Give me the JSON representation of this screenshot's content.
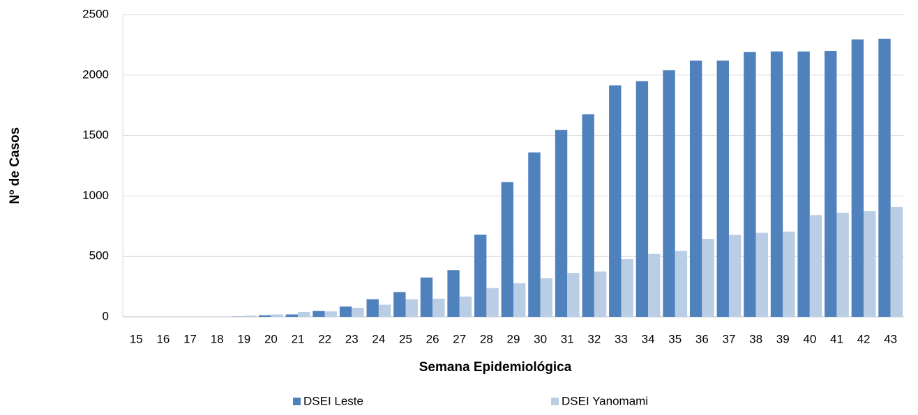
{
  "chart_data": {
    "type": "bar",
    "x_label": "Semana Epidemiológica",
    "y_label": "Nº de Casos",
    "categories": [
      "15",
      "16",
      "17",
      "18",
      "19",
      "20",
      "21",
      "22",
      "23",
      "24",
      "25",
      "26",
      "27",
      "28",
      "29",
      "30",
      "31",
      "32",
      "33",
      "34",
      "35",
      "36",
      "37",
      "38",
      "39",
      "40",
      "41",
      "42",
      "43"
    ],
    "series": [
      {
        "name": "DSEI Leste",
        "color": "#4f81bd",
        "values": [
          0,
          0,
          0,
          0,
          2,
          13,
          20,
          48,
          85,
          145,
          205,
          325,
          385,
          680,
          1115,
          1360,
          1545,
          1675,
          1915,
          1950,
          2040,
          2120,
          2120,
          2190,
          2195,
          2195,
          2200,
          2295,
          2300
        ]
      },
      {
        "name": "DSEI Yanomami",
        "color": "#b9cde5",
        "values": [
          0,
          0,
          0,
          3,
          10,
          20,
          40,
          45,
          75,
          100,
          145,
          150,
          168,
          238,
          278,
          320,
          362,
          375,
          478,
          520,
          545,
          645,
          678,
          695,
          705,
          840,
          860,
          875,
          910
        ]
      }
    ],
    "ylim": [
      0,
      2500
    ],
    "yticks": [
      0,
      500,
      1000,
      1500,
      2000,
      2500
    ],
    "grid": true,
    "legend": "bottom"
  }
}
